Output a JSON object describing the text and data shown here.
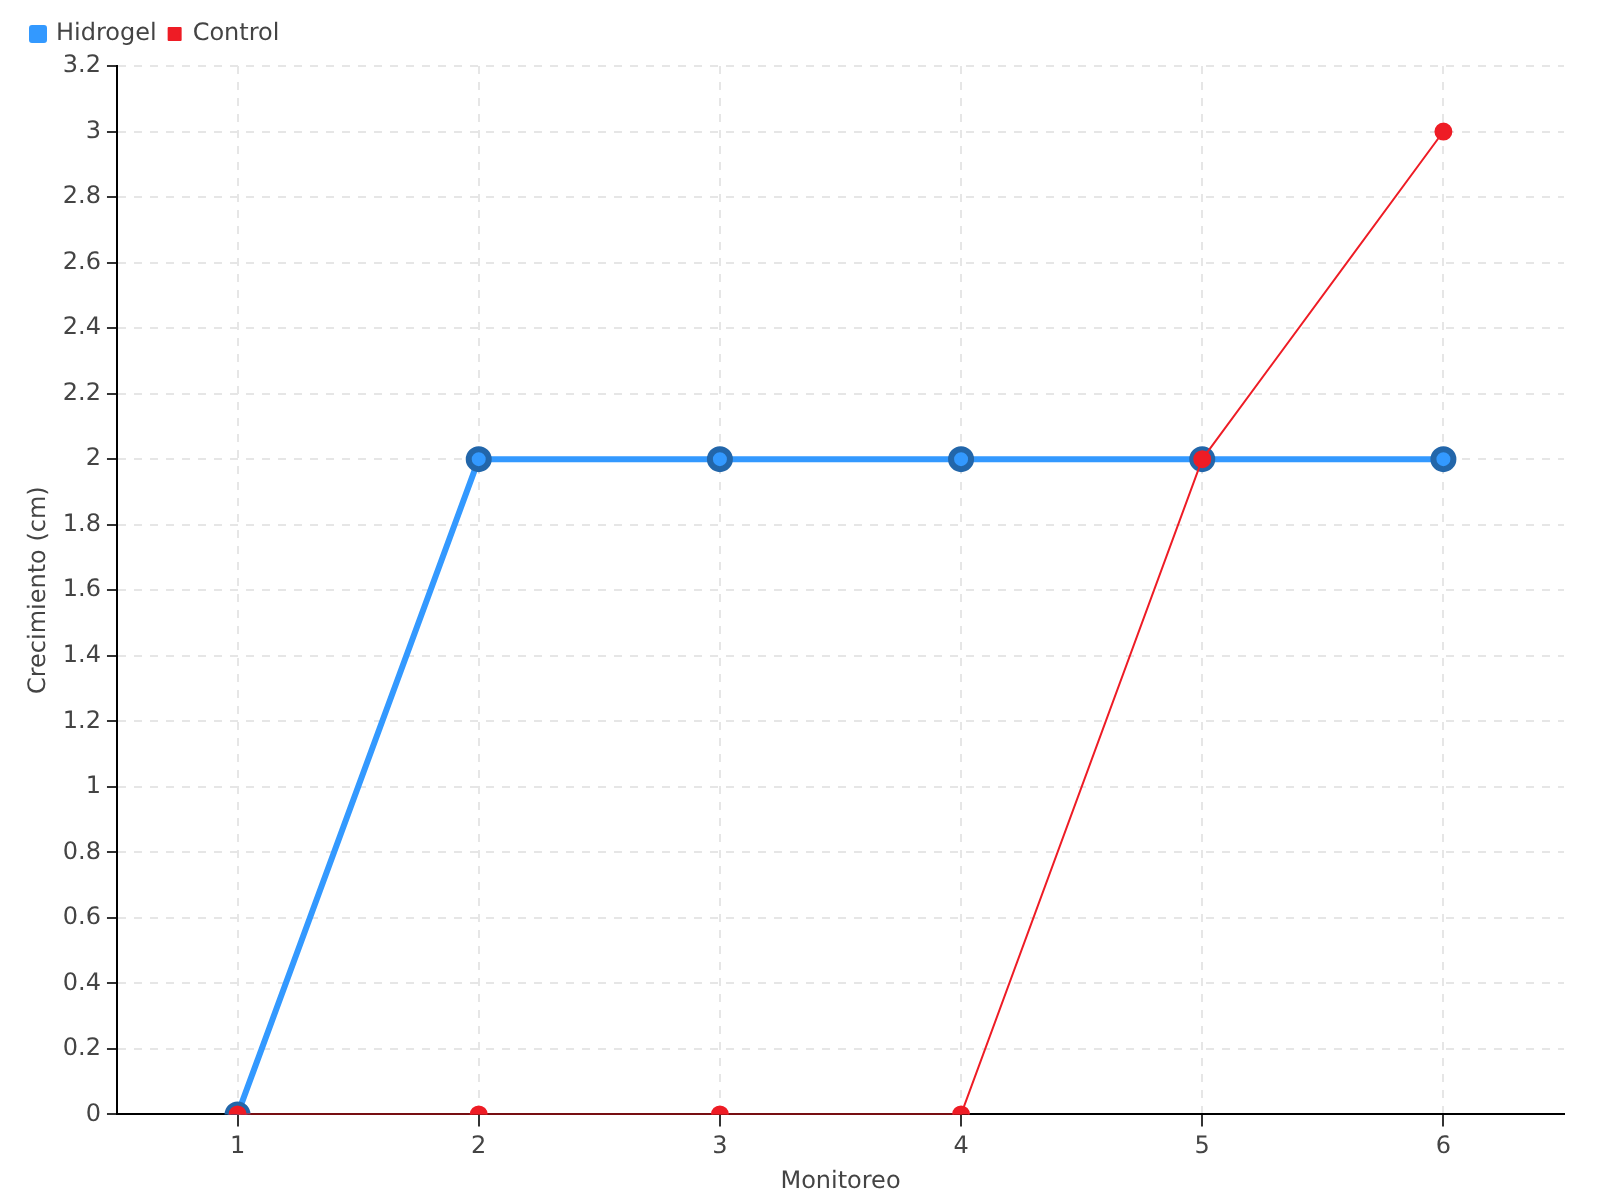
{
  "chart_data": {
    "type": "line",
    "xlabel": "Monitoreo",
    "ylabel": "Crecimiento (cm)",
    "categories": [
      "1",
      "2",
      "3",
      "4",
      "5",
      "6"
    ],
    "series": [
      {
        "name": "Hidrogel",
        "color": "#3399ff",
        "values": [
          0,
          2,
          2,
          2,
          2,
          2
        ]
      },
      {
        "name": "Control",
        "color": "#ee1c25",
        "values": [
          0,
          0,
          0,
          0,
          2,
          3
        ]
      }
    ],
    "ylim": [
      0,
      3.2
    ],
    "yticks": [
      0,
      0.2,
      0.4,
      0.6,
      0.8,
      1,
      1.2,
      1.4,
      1.6,
      1.8,
      2,
      2.2,
      2.4,
      2.6,
      2.8,
      3,
      3.2
    ],
    "grid": true,
    "legend": "top left",
    "marker": "circle"
  }
}
